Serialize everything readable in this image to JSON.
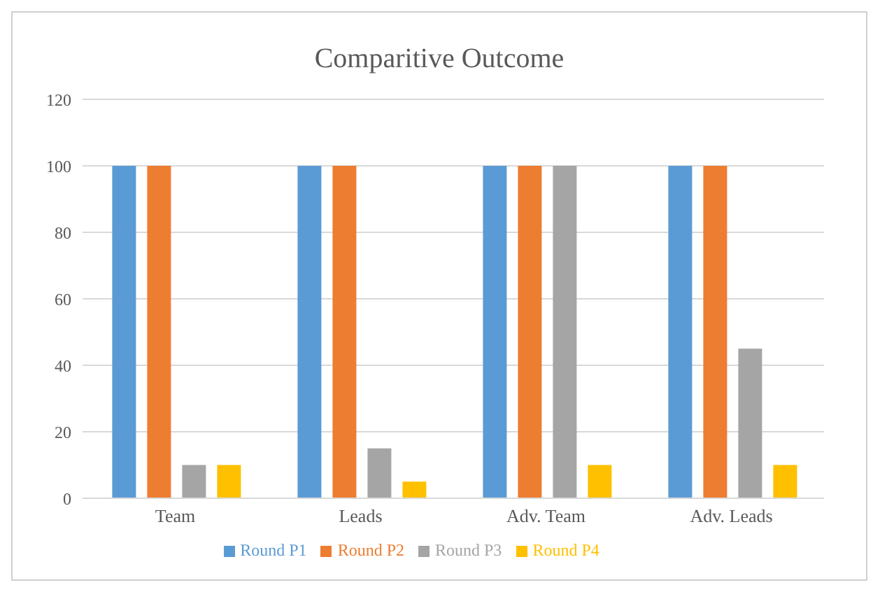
{
  "chart_data": {
    "type": "bar",
    "title": "Comparitive Outcome",
    "categories": [
      "Team",
      "Leads",
      "Adv. Team",
      "Adv. Leads"
    ],
    "series": [
      {
        "name": "Round P1",
        "color": "#5b9bd5",
        "values": [
          100,
          100,
          100,
          100
        ]
      },
      {
        "name": "Round P2",
        "color": "#ed7d31",
        "values": [
          100,
          100,
          100,
          100
        ]
      },
      {
        "name": "Round P3",
        "color": "#a5a5a5",
        "values": [
          10,
          15,
          100,
          45
        ]
      },
      {
        "name": "Round P4",
        "color": "#ffc000",
        "values": [
          10,
          5,
          10,
          10
        ]
      }
    ],
    "ylim": [
      0,
      120
    ],
    "yticks": [
      0,
      20,
      40,
      60,
      80,
      100,
      120
    ],
    "grid": "y",
    "legend": "bottom"
  }
}
